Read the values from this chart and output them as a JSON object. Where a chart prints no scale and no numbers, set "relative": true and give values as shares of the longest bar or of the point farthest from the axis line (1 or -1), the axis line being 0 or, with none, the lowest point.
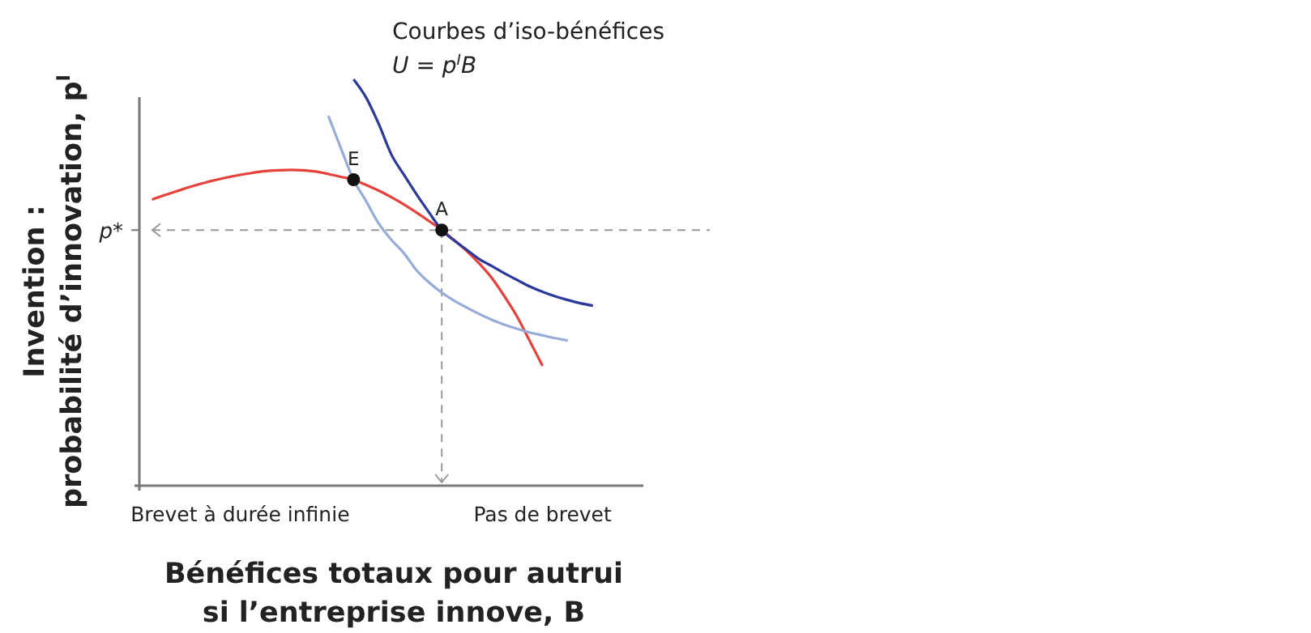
{
  "chart_data": {
    "type": "line",
    "relative": true,
    "xlabel": "Bénéfices totaux pour autrui\nsi l’entreprise innove, B",
    "ylabel": "Invention :\nprobabilité d’innovation, p$^{I}$",
    "categories": [
      null,
      null,
      null,
      null,
      null,
      null,
      null,
      null,
      "Brevet à durée infinie",
      null,
      null,
      null,
      null,
      null,
      null,
      null,
      null,
      null,
      null,
      null,
      null,
      null,
      null,
      null,
      null,
      null,
      null,
      null,
      null,
      null,
      null,
      null,
      "Pas de brevet",
      null,
      null,
      null,
      null,
      null,
      null,
      null,
      null
    ],
    "series": [
      {
        "color": "#e8413c",
        "values": [
          null,
          0.704,
          0.715,
          0.725,
          0.735,
          0.744,
          0.752,
          0.759,
          0.765,
          0.77,
          0.774,
          0.776,
          0.777,
          0.776,
          0.773,
          0.767,
          0.76,
          0.753,
          0.74,
          0.726,
          0.71,
          0.692,
          0.672,
          0.651,
          0.629,
          0.604,
          0.577,
          0.546,
          0.51,
          0.465,
          0.415,
          0.355,
          0.295,
          null,
          null,
          null,
          null,
          null,
          null,
          null,
          null
        ]
      },
      {
        "color": "#97acd8",
        "values": [
          null,
          null,
          null,
          null,
          null,
          null,
          null,
          null,
          null,
          null,
          null,
          null,
          null,
          null,
          null,
          0.91,
          0.83,
          0.753,
          0.7,
          0.645,
          0.605,
          0.572,
          0.53,
          0.5,
          0.475,
          0.455,
          0.438,
          0.422,
          0.408,
          0.396,
          0.386,
          0.377,
          0.37,
          0.363,
          0.357,
          null,
          null,
          null,
          null,
          null,
          null
        ]
      },
      {
        "color": "#2b3a9a",
        "values": [
          null,
          null,
          null,
          null,
          null,
          null,
          null,
          null,
          null,
          null,
          null,
          null,
          null,
          null,
          null,
          null,
          null,
          1,
          0.955,
          0.89,
          0.815,
          0.765,
          0.717,
          0.672,
          0.629,
          0.603,
          0.58,
          0.557,
          0.54,
          0.522,
          0.506,
          0.49,
          0.477,
          0.466,
          0.457,
          0.449,
          0.443,
          null,
          null,
          null,
          null
        ]
      },
      {
        "type": "scatter",
        "color": "#111111",
        "values": [
          null,
          null,
          null,
          null,
          null,
          null,
          null,
          null,
          null,
          null,
          null,
          null,
          null,
          null,
          null,
          null,
          null,
          0.753,
          null,
          null,
          null,
          null,
          null,
          null,
          0.629,
          null,
          null,
          null,
          null,
          null,
          null,
          null,
          null,
          null,
          null,
          null,
          null,
          null,
          null,
          null,
          null
        ]
      }
    ],
    "ref_lines": [
      {
        "axis": "y",
        "value": 0.629,
        "label": "p*",
        "line_style": "dashed",
        "color": "#999999"
      }
    ],
    "annotations": [
      {
        "text": "E",
        "y": 0.753
      },
      {
        "text": "A",
        "y": 0.629
      },
      "Courbes d’iso-bénéfices",
      "U = p$^{I}$B"
    ]
  }
}
